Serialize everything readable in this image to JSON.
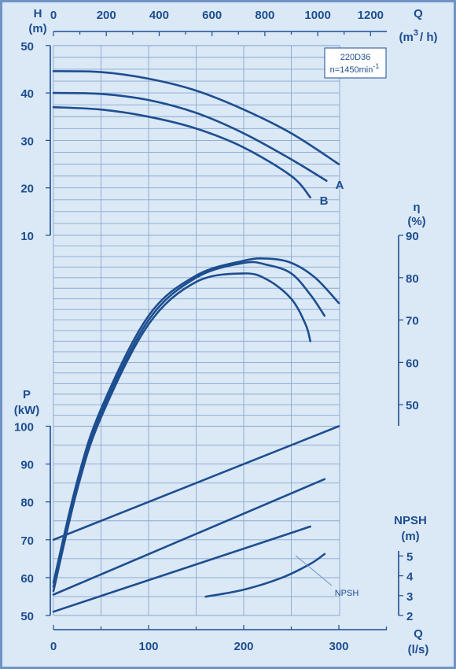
{
  "chart_data": {
    "type": "line",
    "model_box": {
      "model": "220D36",
      "speed_prefix": "n=1450min",
      "speed_exp": "-1"
    },
    "axes": {
      "q_top": {
        "label": "Q",
        "unit_base": "(m",
        "unit_exp": "3",
        "unit_tail": "/ h)",
        "ticks": [
          0,
          200,
          400,
          600,
          800,
          1000,
          1200
        ]
      },
      "q_bottom": {
        "label": "Q",
        "unit": "(l/s)",
        "ticks": [
          0,
          100,
          200,
          300
        ]
      },
      "head": {
        "label": "H",
        "unit": "(m)",
        "ticks": [
          10,
          20,
          30,
          40,
          50
        ]
      },
      "efficiency": {
        "label": "η",
        "unit": "(%)",
        "ticks": [
          50,
          60,
          70,
          80,
          90
        ]
      },
      "power": {
        "label": "P",
        "unit": "(kW)",
        "ticks": [
          50,
          60,
          70,
          80,
          90,
          100
        ]
      },
      "npsh": {
        "label": "NPSH",
        "unit": "(m)",
        "ticks": [
          2,
          3,
          4,
          5
        ]
      }
    },
    "annotations": {
      "impeller_a": "A",
      "impeller_b": "B",
      "npsh_label": "NPSH"
    },
    "head_series": [
      {
        "name": "A",
        "x": [
          0,
          50,
          100,
          150,
          200,
          250,
          300
        ],
        "y": [
          44.6,
          44.4,
          43.0,
          40.5,
          36.5,
          31.5,
          25.0
        ]
      },
      {
        "name": "",
        "x": [
          0,
          50,
          100,
          150,
          200,
          250,
          287
        ],
        "y": [
          40.0,
          39.8,
          38.5,
          35.8,
          31.5,
          26.0,
          21.5
        ]
      },
      {
        "name": "B",
        "x": [
          0,
          50,
          100,
          150,
          200,
          250,
          270
        ],
        "y": [
          37.0,
          36.5,
          35.0,
          32.5,
          28.5,
          22.5,
          18.0
        ]
      }
    ],
    "efficiency_series": [
      {
        "x": [
          0,
          25,
          50,
          100,
          150,
          200,
          225,
          250,
          275,
          300
        ],
        "y": [
          8,
          32,
          49,
          71,
          80.5,
          84,
          84.5,
          83.5,
          80,
          74
        ]
      },
      {
        "x": [
          0,
          25,
          50,
          100,
          150,
          200,
          225,
          250,
          270,
          285
        ],
        "y": [
          7,
          31,
          48,
          70,
          80,
          83.5,
          83,
          81,
          76,
          71
        ]
      },
      {
        "x": [
          0,
          25,
          50,
          100,
          150,
          200,
          225,
          250,
          265,
          270
        ],
        "y": [
          6,
          30,
          47,
          69,
          79,
          81,
          79.5,
          75,
          69,
          65
        ]
      }
    ],
    "power_series": [
      {
        "x": [
          0,
          300
        ],
        "y": [
          70,
          100
        ]
      },
      {
        "x": [
          0,
          285
        ],
        "y": [
          55.5,
          86
        ]
      },
      {
        "x": [
          0,
          270
        ],
        "y": [
          51,
          73.5
        ]
      }
    ],
    "npsh_series": [
      {
        "x": [
          160,
          200,
          240,
          270,
          285
        ],
        "y": [
          2.95,
          3.3,
          3.9,
          4.6,
          5.1
        ]
      }
    ]
  }
}
